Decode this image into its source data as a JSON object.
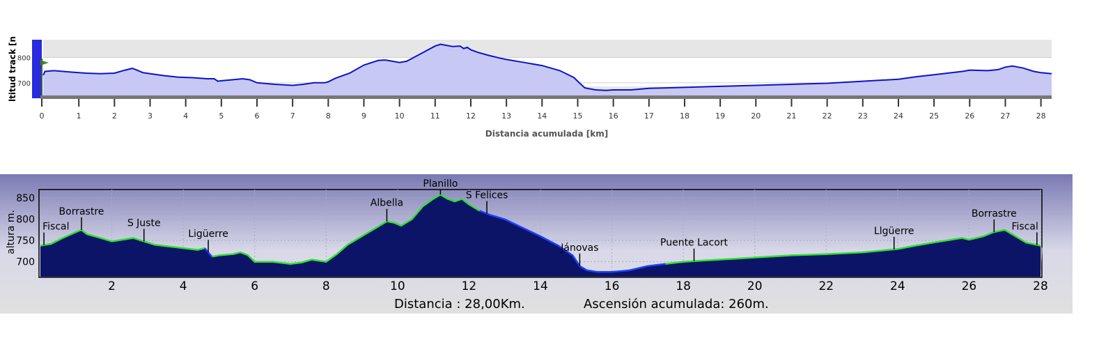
{
  "chart_data": [
    {
      "type": "area",
      "title": "",
      "xlabel": "Distancia acumulada [km]",
      "ylabel": "ltitud track [n",
      "xlim": [
        0,
        28.3
      ],
      "ylim": [
        650,
        870
      ],
      "x_ticks": [
        "0",
        "1",
        "2",
        "3",
        "4",
        "5",
        "6",
        "7",
        "8",
        "9",
        "10",
        "11",
        "12",
        "13",
        "14",
        "15",
        "16",
        "17",
        "18",
        "19",
        "20",
        "21",
        "22",
        "23",
        "24",
        "25",
        "26",
        "27",
        "28"
      ],
      "y_ticks": [
        "700",
        "800"
      ],
      "y_tick_values": [
        700,
        800
      ],
      "grid": true,
      "colors": {
        "line": "#0a14c8",
        "fill": "#c8c8f5",
        "band": "#e6e6e6",
        "ylabel_bar": "#2a2ae0",
        "axis": "#777777",
        "tick": "#333333",
        "marker": "#4a8a30"
      },
      "series": [
        {
          "x": [
            0,
            0.05,
            0.3,
            0.8,
            1.2,
            1.6,
            2.0,
            2.3,
            2.5,
            2.6,
            2.8,
            3.0,
            3.4,
            3.8,
            4.2,
            4.6,
            4.8,
            4.9,
            5.0,
            5.3,
            5.6,
            5.8,
            6.0,
            6.5,
            7.0,
            7.3,
            7.6,
            7.9,
            8.0,
            8.2,
            8.6,
            9.0,
            9.4,
            9.6,
            9.8,
            10.0,
            10.2,
            10.4,
            10.6,
            10.8,
            11.0,
            11.15,
            11.3,
            11.5,
            11.7,
            11.8,
            11.9,
            12.0,
            12.2,
            12.5,
            12.8,
            13.0,
            13.5,
            14.0,
            14.5,
            14.9,
            15.0,
            15.2,
            15.5,
            15.8,
            16.0,
            16.5,
            17.0,
            17.5,
            18.0,
            19.0,
            20.0,
            21.0,
            22.0,
            23.0,
            24.0,
            24.5,
            25.0,
            25.5,
            25.8,
            26.0,
            26.5,
            26.8,
            27.0,
            27.2,
            27.5,
            27.8,
            28.0,
            28.3
          ],
          "y": [
            730,
            745,
            748,
            742,
            738,
            736,
            738,
            750,
            757,
            752,
            740,
            736,
            728,
            722,
            720,
            716,
            716,
            706,
            708,
            712,
            716,
            712,
            700,
            694,
            690,
            694,
            700,
            700,
            704,
            718,
            738,
            770,
            788,
            790,
            785,
            780,
            785,
            800,
            815,
            830,
            845,
            852,
            848,
            843,
            845,
            835,
            840,
            830,
            820,
            808,
            798,
            792,
            780,
            768,
            748,
            720,
            706,
            680,
            672,
            670,
            672,
            672,
            678,
            680,
            682,
            686,
            690,
            694,
            698,
            706,
            714,
            724,
            732,
            740,
            745,
            750,
            748,
            752,
            762,
            766,
            758,
            745,
            740,
            736
          ]
        }
      ]
    },
    {
      "type": "area",
      "title": "",
      "xlabel": "",
      "ylabel": "altura m.",
      "xlim": [
        0,
        28
      ],
      "ylim": [
        665,
        870
      ],
      "x_ticks": [
        "2",
        "4",
        "6",
        "8",
        "10",
        "12",
        "14",
        "16",
        "18",
        "20",
        "22",
        "24",
        "26",
        "28"
      ],
      "x_tick_values": [
        2,
        4,
        6,
        8,
        10,
        12,
        14,
        16,
        18,
        20,
        22,
        24,
        26,
        28
      ],
      "y_ticks": [
        "700",
        "750",
        "800",
        "850"
      ],
      "y_tick_values": [
        700,
        750,
        800,
        850
      ],
      "grid": true,
      "colors": {
        "fill": "#0c1468",
        "line_green": "#2fe02f",
        "line_blue": "#2040ff",
        "bg_top": "#7a7ab4",
        "bg_bottom": "#e0e0e0"
      },
      "annotations": [
        {
          "label": "Fiscal",
          "x": 0.1
        },
        {
          "label": "Borrastre",
          "x": 1.15
        },
        {
          "label": "S Juste",
          "x": 2.9
        },
        {
          "label": "Ligüerre",
          "x": 4.7
        },
        {
          "label": "Albella",
          "x": 9.7
        },
        {
          "label": "Planillo",
          "x": 11.2
        },
        {
          "label": "S Felices",
          "x": 12.5
        },
        {
          "label": "Jánovas",
          "x": 15.1
        },
        {
          "label": "Puente Lacort",
          "x": 18.3
        },
        {
          "label": "Llgüerre",
          "x": 23.9
        },
        {
          "label": "Borrastre",
          "x": 26.7
        },
        {
          "label": "Fiscal",
          "x": 27.9
        }
      ],
      "footer": {
        "distance": "Distancia : 28,00Km.",
        "ascent": "Ascensión acumulada: 260m."
      },
      "series": [
        {
          "x": [
            0,
            0.3,
            0.6,
            1.0,
            1.15,
            1.3,
            1.6,
            2.0,
            2.3,
            2.6,
            2.9,
            3.2,
            3.6,
            4.0,
            4.4,
            4.6,
            4.7,
            4.8,
            5.0,
            5.4,
            5.6,
            5.8,
            6.0,
            6.5,
            7.0,
            7.3,
            7.6,
            8.0,
            8.3,
            8.6,
            9.0,
            9.4,
            9.7,
            9.9,
            10.1,
            10.4,
            10.7,
            11.0,
            11.2,
            11.4,
            11.6,
            11.8,
            12.0,
            12.3,
            12.6,
            13.0,
            13.5,
            14.0,
            14.5,
            14.9,
            15.1,
            15.3,
            15.6,
            16.0,
            16.5,
            17.0,
            17.5,
            18.0,
            19.0,
            20.0,
            21.0,
            22.0,
            23.0,
            24.0,
            24.5,
            25.0,
            25.5,
            25.8,
            26.0,
            26.4,
            26.7,
            27.0,
            27.3,
            27.6,
            28.0
          ],
          "y": [
            738,
            742,
            755,
            770,
            775,
            765,
            758,
            748,
            752,
            756,
            748,
            740,
            736,
            732,
            728,
            732,
            722,
            712,
            715,
            718,
            722,
            716,
            700,
            700,
            695,
            698,
            705,
            700,
            718,
            740,
            760,
            780,
            795,
            792,
            785,
            800,
            830,
            848,
            858,
            848,
            842,
            848,
            835,
            820,
            810,
            800,
            780,
            760,
            738,
            715,
            690,
            680,
            676,
            676,
            680,
            690,
            695,
            700,
            705,
            710,
            715,
            718,
            722,
            730,
            738,
            745,
            752,
            756,
            752,
            760,
            770,
            775,
            760,
            745,
            738
          ]
        }
      ]
    }
  ]
}
